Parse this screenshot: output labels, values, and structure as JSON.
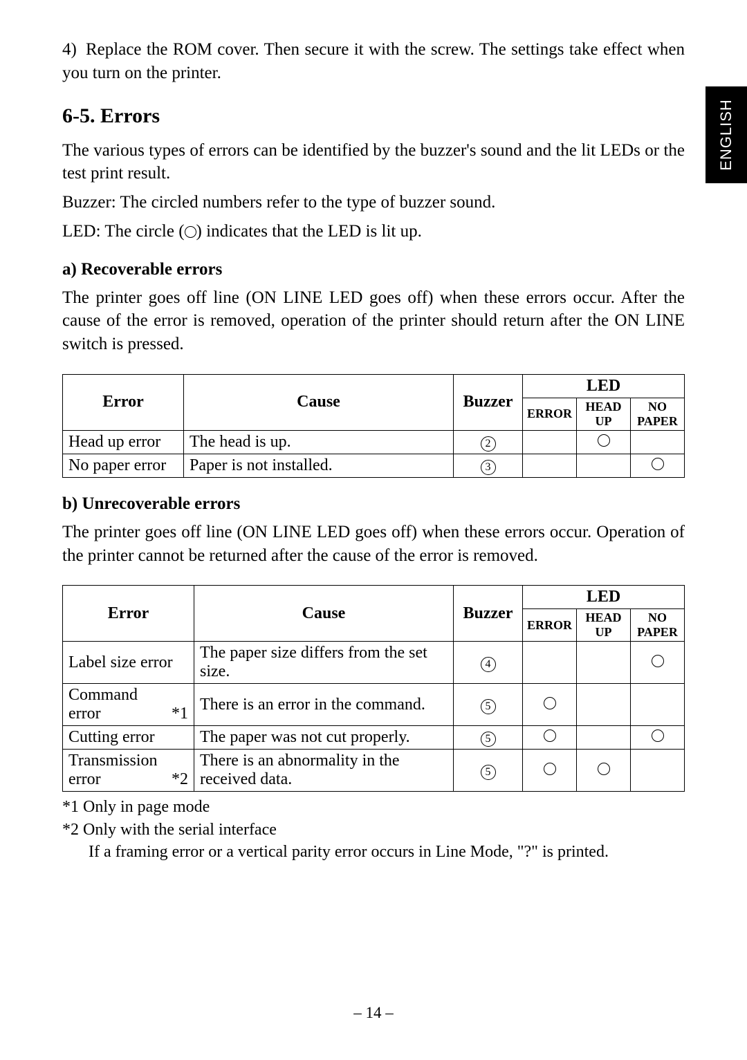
{
  "sideTab": "ENGLISH",
  "intro": {
    "num": "4)",
    "text": "Replace the ROM cover. Then secure it with the screw. The settings take effect when you turn on the printer."
  },
  "heading": "6-5. Errors",
  "introErrors": {
    "p1": "The various types of errors can be identified by the buzzer's sound and the lit LEDs or the test print result.",
    "p2": "Buzzer: The circled numbers refer to the type of buzzer sound.",
    "p3a": "LED: The circle (",
    "p3b": ") indicates that the LED is lit up."
  },
  "sectionA": {
    "title": "a) Recoverable errors",
    "p1": "The printer goes off line (ON LINE LED goes off) when these errors occur. After the cause of the error is removed, operation of the printer should return after the ON LINE switch is pressed.",
    "headers": {
      "error": "Error",
      "cause": "Cause",
      "buzzer": "Buzzer",
      "led": "LED",
      "ledErr": "ERROR",
      "ledHead": "HEAD UP",
      "ledPaper": "NO PAPER"
    },
    "rows": [
      {
        "error": "Head up error",
        "cause": "The head is up.",
        "buzzer": "2",
        "leds": [
          "",
          "o",
          ""
        ]
      },
      {
        "error": "No paper error",
        "cause": "Paper is not installed.",
        "buzzer": "3",
        "leds": [
          "",
          "",
          "o"
        ]
      }
    ]
  },
  "sectionB": {
    "title": "b) Unrecoverable errors",
    "p1": "The printer goes off line (ON LINE LED goes off) when these errors occur. Operation of the printer cannot be returned after the cause of the error is removed.",
    "headers": {
      "error": "Error",
      "cause": "Cause",
      "buzzer": "Buzzer",
      "led": "LED",
      "ledErr": "ERROR",
      "ledHead": "HEAD UP",
      "ledPaper": "NO PAPER"
    },
    "rows": [
      {
        "error": "Label size error",
        "note": "",
        "cause": "The paper size differs from the set size.",
        "buzzer": "4",
        "leds": [
          "",
          "",
          "o"
        ]
      },
      {
        "error": "Command error",
        "note": "*1",
        "cause": "There is an error in the command.",
        "buzzer": "5",
        "leds": [
          "o",
          "",
          ""
        ]
      },
      {
        "error": "Cutting error",
        "note": "",
        "cause": "The paper was not cut properly.",
        "buzzer": "5",
        "leds": [
          "o",
          "",
          "o"
        ]
      },
      {
        "error": "Transmission error",
        "note": "*2",
        "cause": "There is an abnormality in the received data.",
        "buzzer": "5",
        "leds": [
          "o",
          "o",
          ""
        ]
      }
    ],
    "notes": {
      "n1": "*1 Only in page mode",
      "n2": "*2 Only with the serial interface",
      "n3": "If a framing error or a vertical parity error occurs in Line Mode, \"?\" is printed."
    }
  },
  "pageNum": "– 14 –"
}
